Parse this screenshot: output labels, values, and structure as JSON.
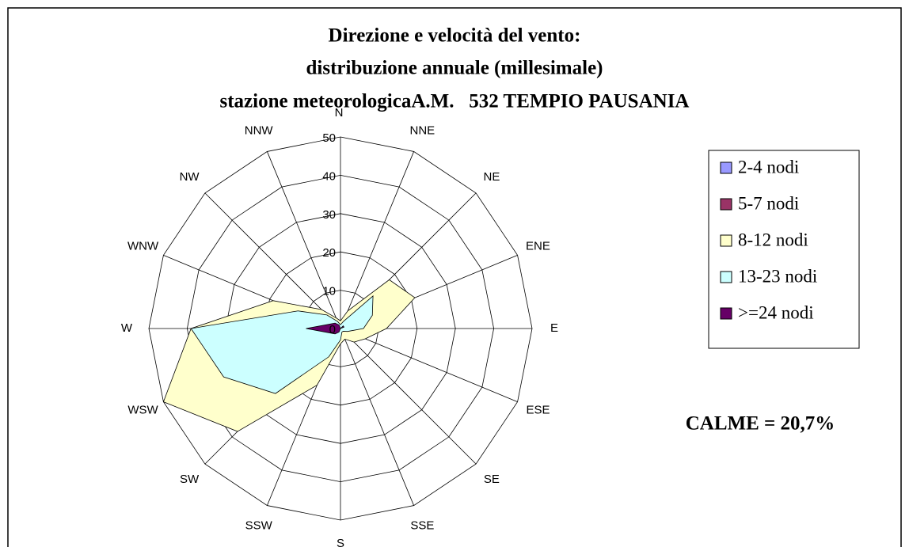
{
  "chart_data": {
    "type": "radar",
    "title": [
      "Direzione e velocità del vento:",
      "distribuzione annuale (millesimale)",
      "stazione meteorologicaA.M.   532 TEMPIO PAUSANIA"
    ],
    "annotation": "CALME = 20,7%",
    "categories": [
      "N",
      "NNE",
      "NE",
      "ENE",
      "E",
      "ESE",
      "SE",
      "SSE",
      "S",
      "SSW",
      "SW",
      "WSW",
      "W",
      "WNW",
      "NW",
      "NNW"
    ],
    "series": [
      {
        "name": "2-4 nodi",
        "color": "#9999ff",
        "values": [
          1,
          1,
          1,
          1,
          1,
          1,
          1,
          1,
          1,
          1,
          2,
          2,
          2,
          1,
          1,
          1
        ]
      },
      {
        "name": "5-7 nodi",
        "color": "#993366",
        "values": [
          2,
          2,
          3,
          4,
          3,
          2,
          2,
          1,
          1,
          2,
          4,
          4,
          5,
          3,
          5,
          3
        ]
      },
      {
        "name": "8-12 nodi",
        "color": "#ffffcc",
        "values": [
          2,
          5,
          18,
          21,
          12,
          7,
          5,
          3,
          4,
          16,
          38,
          50,
          39,
          19,
          7,
          3
        ]
      },
      {
        "name": "13-23 nodi",
        "color": "#ccffff",
        "values": [
          1,
          2,
          12,
          9,
          6,
          2,
          1,
          1,
          3,
          8,
          24,
          33,
          39,
          12,
          5,
          2
        ]
      },
      {
        "name": ">=24 nodi",
        "color": "#660066",
        "values": [
          0,
          0,
          1,
          1,
          0,
          0,
          0,
          0,
          0,
          1,
          2,
          3,
          9,
          3,
          2,
          1
        ]
      }
    ],
    "ylim": [
      0,
      50
    ],
    "yticks": [
      0,
      10,
      20,
      30,
      40,
      50
    ],
    "grid": true,
    "legend": "right"
  }
}
